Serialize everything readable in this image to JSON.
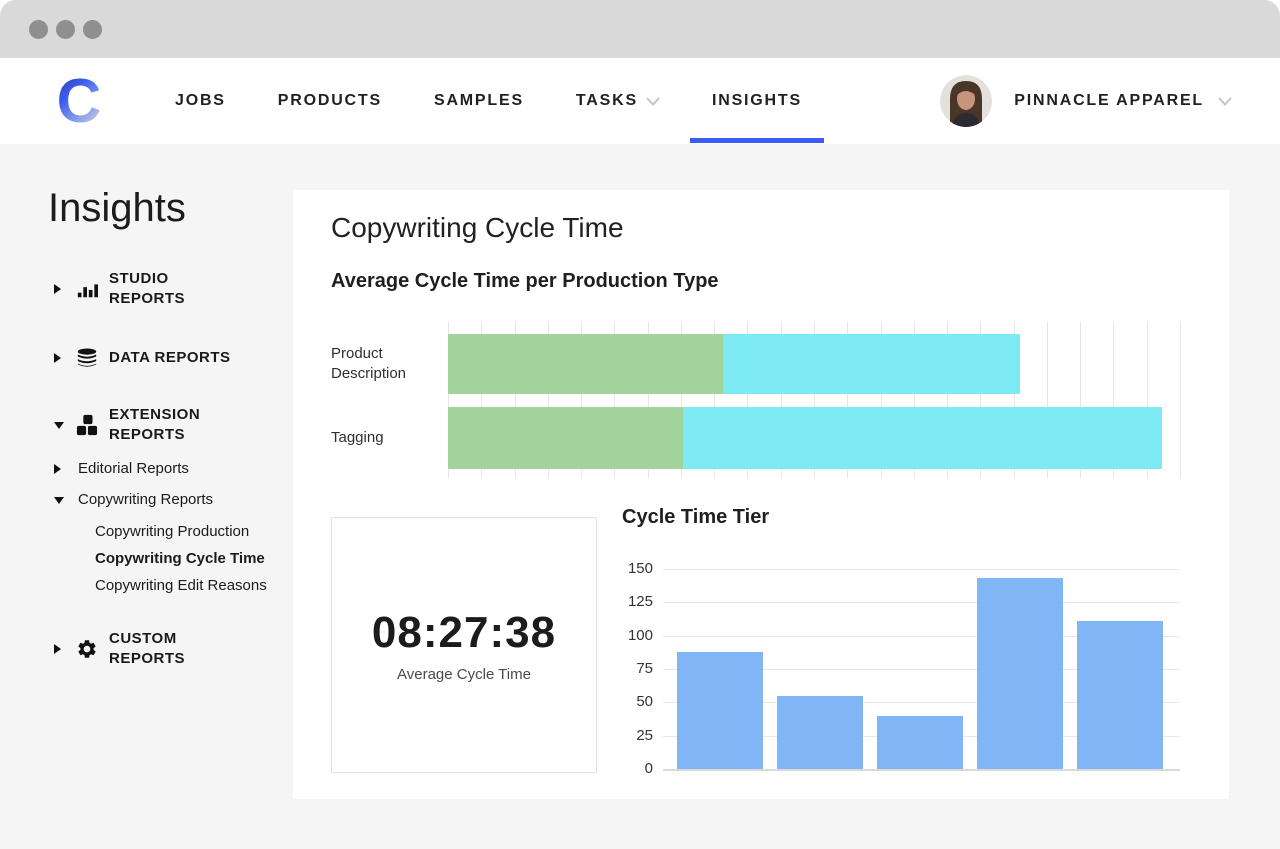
{
  "window": {
    "titlebar_color": "#d9d9d9",
    "control_dots": 3
  },
  "nav": {
    "logo_letter": "C",
    "accent_color": "#3b5cf4",
    "items": [
      {
        "label": "JOBS",
        "active": false,
        "has_chevron": false
      },
      {
        "label": "PRODUCTS",
        "active": false,
        "has_chevron": false
      },
      {
        "label": "SAMPLES",
        "active": false,
        "has_chevron": false
      },
      {
        "label": "TASKS",
        "active": false,
        "has_chevron": true
      },
      {
        "label": "INSIGHTS",
        "active": true,
        "has_chevron": false
      }
    ],
    "account": {
      "name": "PINNACLE APPAREL",
      "has_chevron": true,
      "avatar": "woman-portrait"
    }
  },
  "sidebar": {
    "title": "Insights",
    "sections": [
      {
        "label": "STUDIO REPORTS",
        "icon": "bar-chart-icon",
        "state": "collapsed"
      },
      {
        "label": "DATA REPORTS",
        "icon": "database-icon",
        "state": "collapsed"
      },
      {
        "label": "EXTENSION REPORTS",
        "icon": "blocks-icon",
        "state": "expanded",
        "children": [
          {
            "label": "Editorial Reports",
            "state": "collapsed"
          },
          {
            "label": "Copywriting Reports",
            "state": "expanded",
            "children": [
              {
                "label": "Copywriting Production",
                "active": false
              },
              {
                "label": "Copywriting Cycle Time",
                "active": true
              },
              {
                "label": "Copywriting Edit Reasons",
                "active": false
              }
            ]
          }
        ]
      },
      {
        "label": "CUSTOM REPORTS",
        "icon": "gear-icon",
        "state": "collapsed"
      }
    ]
  },
  "main": {
    "page_title": "Copywriting Cycle Time",
    "stat_card": {
      "value": "08:27:38",
      "label": "Average Cycle Time"
    }
  },
  "chart_data": [
    {
      "type": "bar",
      "orientation": "horizontal-stacked",
      "title": "Average Cycle Time per Production Type",
      "categories": [
        "Product Description",
        "Tagging"
      ],
      "series": [
        {
          "name": "cycle-segment-1",
          "color": "#a3d39c",
          "values_pct_of_axis": [
            37.6,
            32.1
          ]
        },
        {
          "name": "cycle-segment-2",
          "color": "#7de9f2",
          "values_pct_of_axis": [
            40.5,
            65.4
          ]
        }
      ],
      "x_gridline_count": 22,
      "axis_tick_labels_visible": false,
      "legend": "none",
      "grid": "vertical"
    },
    {
      "type": "bar",
      "orientation": "vertical",
      "title": "Cycle Time Tier",
      "categories": [
        "",
        "",
        "",
        "",
        ""
      ],
      "values": [
        88,
        55,
        40,
        143,
        111
      ],
      "y_ticks": [
        0,
        25,
        50,
        75,
        100,
        125,
        150
      ],
      "ylim": [
        0,
        150
      ],
      "bar_color": "#81b6f6",
      "x_tick_labels_visible": false,
      "legend": "none",
      "grid": "horizontal"
    }
  ]
}
